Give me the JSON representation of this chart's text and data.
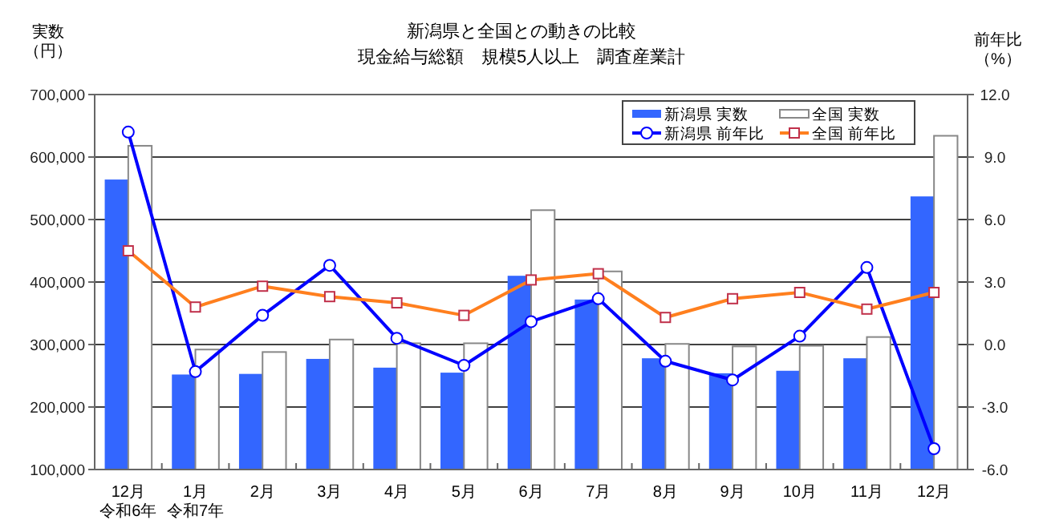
{
  "chart_data": {
    "type": "bar",
    "title": "新潟県と全国との動きの比較",
    "subtitle": "現金給与総額　規模5人以上　調査産業計",
    "ylabel": "実数（円）",
    "y2label": "前年比（%）",
    "categories": [
      "12月令和6年",
      "1月令和7年",
      "2月",
      "3月",
      "4月",
      "5月",
      "6月",
      "7月",
      "8月",
      "9月",
      "10月",
      "11月",
      "12月"
    ],
    "series": [
      {
        "name": "新潟県  実数",
        "color": "#3366ff",
        "values": [
          564000,
          252000,
          253000,
          277000,
          263000,
          255000,
          410000,
          372000,
          278000,
          254000,
          258000,
          278000,
          537000
        ]
      },
      {
        "name": "全国  実数",
        "color": "#ffffff",
        "values": [
          618000,
          292000,
          288000,
          308000,
          302000,
          302000,
          515000,
          417000,
          301000,
          297000,
          298000,
          312000,
          634000
        ]
      },
      {
        "name": "新潟県  前年比",
        "type": "line",
        "axis": "y2",
        "color": "#0000ff",
        "marker": "circle",
        "values": [
          10.2,
          -1.3,
          1.4,
          3.8,
          0.3,
          -1.0,
          1.1,
          2.2,
          -0.8,
          -1.7,
          0.4,
          3.7,
          -5.0
        ]
      },
      {
        "name": "全国  前年比",
        "type": "line",
        "axis": "y2",
        "color": "#ff7f1e",
        "marker": "square",
        "values": [
          4.5,
          1.8,
          2.8,
          2.3,
          2.0,
          1.4,
          3.1,
          3.4,
          1.3,
          2.2,
          2.5,
          1.7,
          2.5
        ]
      }
    ],
    "ylim": [
      100000,
      700000
    ],
    "yticks": [
      {
        "value": 100000,
        "label": "100,000"
      },
      {
        "value": 200000,
        "label": "200,000"
      },
      {
        "value": 300000,
        "label": "300,000"
      },
      {
        "value": 400000,
        "label": "400,000"
      },
      {
        "value": 500000,
        "label": "500,000"
      },
      {
        "value": 600000,
        "label": "600,000"
      },
      {
        "value": 700000,
        "label": "700,000"
      }
    ],
    "y2lim": [
      -6,
      12
    ],
    "y2ticks": [
      {
        "value": -6,
        "label": "-6.0"
      },
      {
        "value": -3,
        "label": "-3.0"
      },
      {
        "value": 0,
        "label": "0.0"
      },
      {
        "value": 3,
        "label": "3.0"
      },
      {
        "value": 6,
        "label": "6.0"
      },
      {
        "value": 9,
        "label": "9.0"
      },
      {
        "value": 12,
        "label": "12.0"
      }
    ],
    "grid": "y",
    "legend": "top right"
  }
}
